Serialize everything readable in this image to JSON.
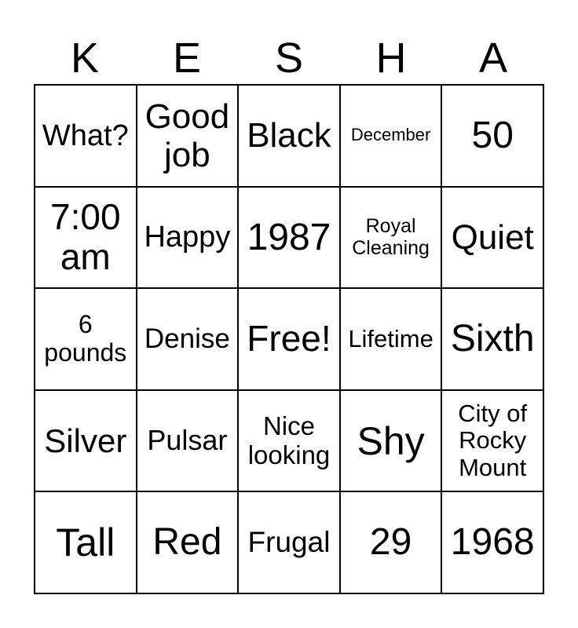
{
  "header": [
    "K",
    "E",
    "S",
    "H",
    "A"
  ],
  "cells": [
    [
      "What?",
      "Good job",
      "Black",
      "December",
      "50"
    ],
    [
      "7:00 am",
      "Happy",
      "1987",
      "Royal Cleaning",
      "Quiet"
    ],
    [
      "6 pounds",
      "Denise",
      "Free!",
      "Lifetime",
      "Sixth"
    ],
    [
      "Silver",
      "Pulsar",
      "Nice looking",
      "Shy",
      "City of Rocky Mount"
    ],
    [
      "Tall",
      "Red",
      "Frugal",
      "29",
      "1968"
    ]
  ]
}
